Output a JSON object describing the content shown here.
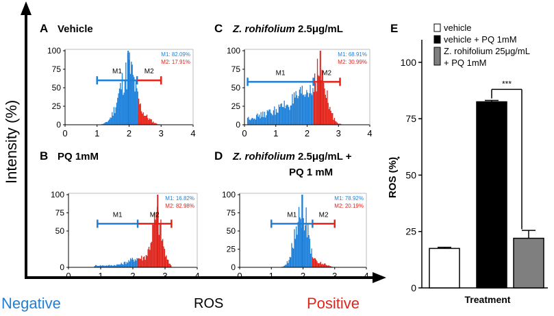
{
  "figure": {
    "y_axis_title": "Intensity (%)",
    "x_negative": "Negative",
    "x_title": "ROS",
    "x_positive": "Positive"
  },
  "colors": {
    "m1": "#1f7fd6",
    "m2": "#e2231a",
    "bar_black": "#000000",
    "bar_gray": "#7f7f7f",
    "bar_white": "#ffffff"
  },
  "panels": {
    "A": {
      "label": "A",
      "title_plain": "Vehicle",
      "title_italic": "",
      "title_line2": "",
      "m1_stat": "M1: 82.09%",
      "m2_stat": "M2: 17.91%",
      "m1_tag": "M1",
      "m2_tag": "M2"
    },
    "B": {
      "label": "B",
      "title_plain": "PQ 1mM",
      "title_italic": "",
      "title_line2": "",
      "m1_stat": "M1: 16.82%",
      "m2_stat": "M2: 82.98%",
      "m1_tag": "M1",
      "m2_tag": "M2"
    },
    "C": {
      "label": "C",
      "title_plain": " 2.5μg/mL",
      "title_italic": "Z. rohifolium",
      "title_line2": "",
      "m1_stat": "M1: 68.91%",
      "m2_stat": "M2: 30.99%",
      "m1_tag": "M1",
      "m2_tag": "M2"
    },
    "D": {
      "label": "D",
      "title_plain": " 2.5μg/mL +",
      "title_italic": "Z. rohifolium",
      "title_line2": "PQ 1 mM",
      "m1_stat": "M1: 78.92%",
      "m2_stat": "M2: 20.19%",
      "m1_tag": "M1",
      "m2_tag": "M2"
    },
    "E": {
      "label": "E"
    }
  },
  "chart_data": [
    {
      "type": "histogram",
      "panel": "A",
      "title": "Vehicle",
      "xlim": [
        0,
        4
      ],
      "ylim": [
        0,
        100
      ],
      "xticks": [
        "0",
        "1",
        "2",
        "3",
        "4"
      ],
      "yticks": [
        "0",
        "25",
        "50",
        "75",
        "100"
      ],
      "marker_split": 2.3,
      "m1_range": [
        1.0,
        2.25
      ],
      "m2_range": [
        2.25,
        3.0
      ],
      "m1_percent": 82.09,
      "m2_percent": 17.91,
      "mode": 1.95
    },
    {
      "type": "histogram",
      "panel": "B",
      "title": "PQ 1mM",
      "xlim": [
        0,
        4
      ],
      "ylim": [
        0,
        100
      ],
      "xticks": [
        "0",
        "1",
        "2",
        "3",
        "4"
      ],
      "yticks": [
        "0",
        "50",
        "75",
        "100"
      ],
      "marker_split": 2.15,
      "m1_range": [
        0.9,
        2.15
      ],
      "m2_range": [
        2.15,
        3.2
      ],
      "m1_percent": 16.82,
      "m2_percent": 82.98,
      "mode": 2.75
    },
    {
      "type": "histogram",
      "panel": "C",
      "title": "Z. rohifolium 2.5μg/mL",
      "xlim": [
        0,
        4
      ],
      "ylim": [
        0,
        100
      ],
      "xticks": [
        "0",
        "1",
        "2",
        "3",
        "4"
      ],
      "yticks": [
        "0",
        "25",
        "50",
        "75",
        "100"
      ],
      "marker_split": 2.2,
      "m1_range": [
        0.1,
        2.2
      ],
      "m2_range": [
        2.2,
        3.05
      ],
      "m1_percent": 68.91,
      "m2_percent": 30.99,
      "mode": 2.4
    },
    {
      "type": "histogram",
      "panel": "D",
      "title": "Z. rohifolium 2.5μg/mL + PQ 1 mM",
      "xlim": [
        0,
        4
      ],
      "ylim": [
        0,
        100
      ],
      "xticks": [
        "0",
        "1",
        "2",
        "3",
        "4"
      ],
      "yticks": [
        "0",
        "25",
        "50",
        "75",
        "100"
      ],
      "marker_split": 2.3,
      "m1_range": [
        1.0,
        2.3
      ],
      "m2_range": [
        2.3,
        3.0
      ],
      "m1_percent": 78.92,
      "m2_percent": 20.19,
      "mode": 1.95
    },
    {
      "type": "bar",
      "panel": "E",
      "categories": [
        "vehicle",
        "vehicle + PQ 1mM",
        "Z. rohifolium 25μg/mL + PQ 1mM"
      ],
      "legend": [
        "vehicle",
        "vehicle + PQ 1mM",
        "Z. rohifolium 25μg/mL",
        "+ PQ 1mM"
      ],
      "values": [
        17.5,
        82.5,
        22.0
      ],
      "errors": [
        0.5,
        0.6,
        3.5
      ],
      "ylim": [
        0,
        110
      ],
      "yticks": [
        "0",
        "25",
        "50",
        "75",
        "100"
      ],
      "ylabel": "ROS (%)",
      "xlabel": "Treatment",
      "significance": "***"
    }
  ]
}
